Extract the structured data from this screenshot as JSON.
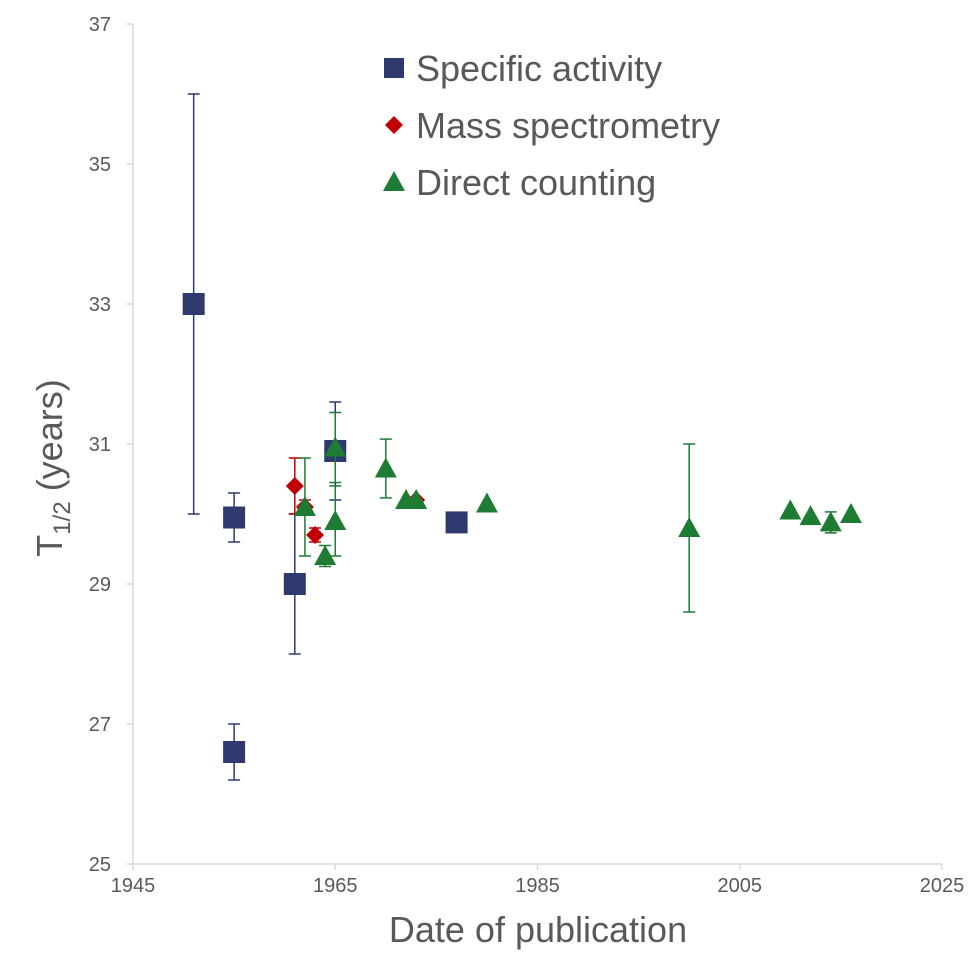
{
  "chart_data": {
    "type": "scatter",
    "title": "",
    "xlabel": "Date of publication",
    "ylabel_main": "T",
    "ylabel_sub": "1/2",
    "ylabel_rest": " (years)",
    "xlim": [
      1945,
      2025
    ],
    "ylim": [
      25,
      37
    ],
    "x_ticks": [
      1945,
      1965,
      1985,
      2005,
      2025
    ],
    "y_ticks": [
      25,
      27,
      29,
      31,
      33,
      35,
      37
    ],
    "grid": false,
    "legend_position": "top-right",
    "series": [
      {
        "name": "Specific activity",
        "marker": "square",
        "color": "#2E3A6E",
        "points": [
          {
            "x": 1951,
            "y": 33.0,
            "err": 3.0
          },
          {
            "x": 1955,
            "y": 29.95,
            "err": 0.35
          },
          {
            "x": 1955,
            "y": 26.6,
            "err": 0.4
          },
          {
            "x": 1961,
            "y": 29.0,
            "err": 1.0
          },
          {
            "x": 1965,
            "y": 30.9,
            "err": 0.7
          },
          {
            "x": 1977,
            "y": 29.88,
            "err": 0
          }
        ]
      },
      {
        "name": "Mass spectrometry",
        "marker": "diamond",
        "color": "#C00000",
        "points": [
          {
            "x": 1961,
            "y": 30.4,
            "err": 0.4
          },
          {
            "x": 1962,
            "y": 30.1,
            "err": 0.1
          },
          {
            "x": 1963,
            "y": 29.7,
            "err": 0.1
          },
          {
            "x": 1973,
            "y": 30.2,
            "err": 0.05
          }
        ]
      },
      {
        "name": "Direct counting",
        "marker": "triangle",
        "color": "#1E7B34",
        "points": [
          {
            "x": 1962,
            "y": 30.1,
            "err": 0.7
          },
          {
            "x": 1964,
            "y": 29.4,
            "err": 0.15
          },
          {
            "x": 1965,
            "y": 29.9,
            "err": 0.5
          },
          {
            "x": 1965,
            "y": 30.95,
            "err": 0.5
          },
          {
            "x": 1970,
            "y": 30.65,
            "err": 0.42
          },
          {
            "x": 1972,
            "y": 30.2,
            "err": 0.05
          },
          {
            "x": 1973,
            "y": 30.2,
            "err": 0.05
          },
          {
            "x": 1980,
            "y": 30.15,
            "err": 0.05
          },
          {
            "x": 2000,
            "y": 29.8,
            "err": 1.2
          },
          {
            "x": 2010,
            "y": 30.05,
            "err": 0.05
          },
          {
            "x": 2012,
            "y": 29.97,
            "err": 0.05
          },
          {
            "x": 2014,
            "y": 29.88,
            "err": 0.15
          },
          {
            "x": 2016,
            "y": 30.0,
            "err": 0.05
          }
        ]
      }
    ]
  }
}
